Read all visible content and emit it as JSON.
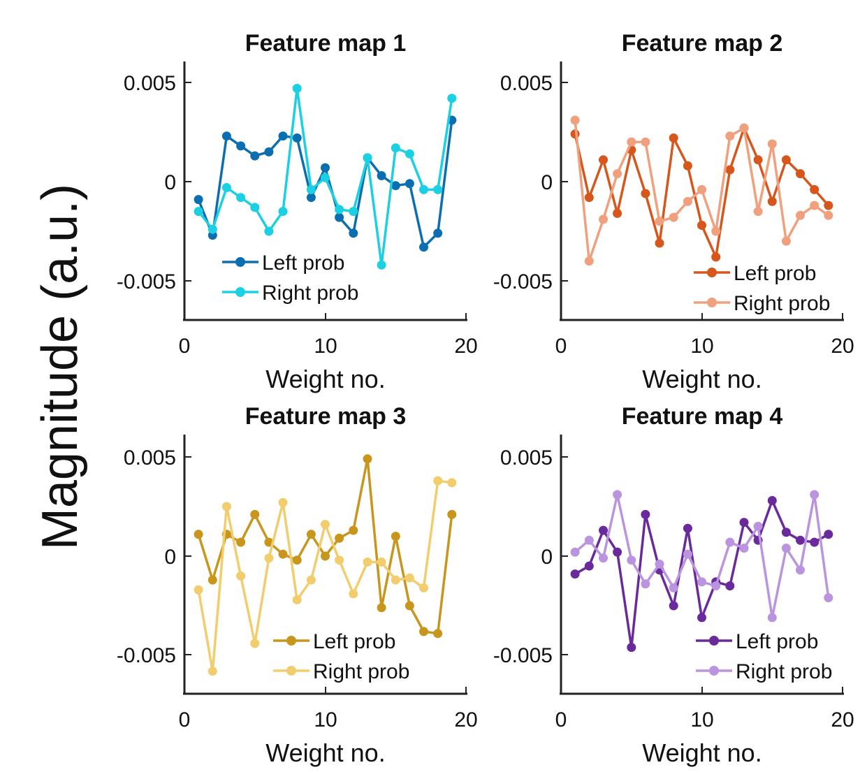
{
  "ylabel": "Magnitude (a.u.)",
  "colors": {
    "fm1": {
      "left": "#0b6eb0",
      "right": "#1ad0e2"
    },
    "fm2": {
      "left": "#d6561c",
      "right": "#f0a07c"
    },
    "fm3": {
      "left": "#c9961d",
      "right": "#f1cd6e"
    },
    "fm4": {
      "left": "#6b2a9c",
      "right": "#bb94e0"
    }
  },
  "chart_data": [
    {
      "type": "line",
      "title": "Feature map 1",
      "xlabel": "Weight no.",
      "xlim": [
        0,
        20
      ],
      "ylim": [
        -0.007,
        0.006
      ],
      "xticks": [
        "0",
        "10",
        "20"
      ],
      "yticks": [
        "0.005",
        "0",
        "-0.005"
      ],
      "legend_position": "bottom-left",
      "x": [
        1,
        2,
        3,
        4,
        5,
        6,
        7,
        8,
        9,
        10,
        11,
        12,
        13,
        14,
        15,
        16,
        17,
        18,
        19
      ],
      "series": [
        {
          "name": "Left prob",
          "values": [
            -0.0009,
            -0.0027,
            0.0023,
            0.0018,
            0.0013,
            0.0015,
            0.0023,
            0.0022,
            -0.0008,
            0.0007,
            -0.0018,
            -0.0026,
            0.0012,
            0.0003,
            -0.0002,
            -0.0001,
            -0.0033,
            -0.0026,
            0.0031
          ]
        },
        {
          "name": "Right prob",
          "values": [
            -0.0015,
            -0.0024,
            -0.0003,
            -0.0008,
            -0.0013,
            -0.0025,
            -0.0015,
            0.0047,
            -0.0004,
            0.0002,
            -0.0014,
            -0.0015,
            0.0012,
            -0.0042,
            0.0017,
            0.0014,
            -0.0004,
            -0.0004,
            0.0042
          ]
        }
      ]
    },
    {
      "type": "line",
      "title": "Feature map 2",
      "xlabel": "Weight no.",
      "xlim": [
        0,
        20
      ],
      "ylim": [
        -0.007,
        0.006
      ],
      "xticks": [
        "0",
        "10",
        "20"
      ],
      "yticks": [
        "0.005",
        "0",
        "-0.005"
      ],
      "legend_position": "bottom-right",
      "x": [
        1,
        2,
        3,
        4,
        5,
        6,
        7,
        8,
        9,
        10,
        11,
        12,
        13,
        14,
        15,
        16,
        17,
        18,
        19
      ],
      "series": [
        {
          "name": "Left prob",
          "values": [
            0.0024,
            -0.0008,
            0.0011,
            -0.0016,
            0.0016,
            -0.0006,
            -0.0031,
            0.0022,
            0.0008,
            -0.0022,
            -0.0038,
            0.0006,
            0.0027,
            0.0011,
            -0.001,
            0.0011,
            0.0004,
            -0.0004,
            -0.0012
          ]
        },
        {
          "name": "Right prob",
          "values": [
            0.0031,
            -0.004,
            -0.0019,
            0.0004,
            0.002,
            0.002,
            -0.002,
            -0.0018,
            -0.001,
            -0.0004,
            -0.0025,
            0.0023,
            0.0027,
            -0.0015,
            0.0019,
            -0.003,
            -0.0017,
            -0.0012,
            -0.0017
          ]
        }
      ]
    },
    {
      "type": "line",
      "title": "Feature map 3",
      "xlabel": "Weight no.",
      "xlim": [
        0,
        20
      ],
      "ylim": [
        -0.007,
        0.006
      ],
      "xticks": [
        "0",
        "10",
        "20"
      ],
      "yticks": [
        "0.005",
        "0",
        "-0.005"
      ],
      "legend_position": "bottom-right",
      "x": [
        1,
        2,
        3,
        4,
        5,
        6,
        7,
        8,
        9,
        10,
        11,
        12,
        13,
        14,
        15,
        16,
        17,
        18,
        19
      ],
      "series": [
        {
          "name": "Left prob",
          "values": [
            0.0011,
            -0.0012,
            0.0011,
            0.0007,
            0.0021,
            0.0007,
            0.0001,
            -0.0002,
            0.0011,
            0.0,
            0.0009,
            0.0013,
            0.0049,
            -0.0026,
            0.001,
            -0.0025,
            -0.0038,
            -0.0039,
            0.0021
          ]
        },
        {
          "name": "Right prob",
          "values": [
            -0.0017,
            -0.0058,
            0.0025,
            -0.001,
            -0.0044,
            -0.0001,
            0.0027,
            -0.0022,
            -0.0012,
            0.0016,
            -0.0002,
            -0.0019,
            -0.0003,
            -0.0003,
            -0.0012,
            -0.0011,
            -0.0016,
            0.0038,
            0.0037
          ]
        }
      ]
    },
    {
      "type": "line",
      "title": "Feature map 4",
      "xlabel": "Weight no.",
      "xlim": [
        0,
        20
      ],
      "ylim": [
        -0.007,
        0.006
      ],
      "xticks": [
        "0",
        "10",
        "20"
      ],
      "yticks": [
        "0.005",
        "0",
        "-0.005"
      ],
      "legend_position": "bottom-right",
      "x": [
        1,
        2,
        3,
        4,
        5,
        6,
        7,
        8,
        9,
        10,
        11,
        12,
        13,
        14,
        15,
        16,
        17,
        18,
        19
      ],
      "series": [
        {
          "name": "Left prob",
          "values": [
            -0.0009,
            -0.0005,
            0.0013,
            0.0002,
            -0.0046,
            0.0021,
            -0.0007,
            -0.0025,
            0.0014,
            -0.0031,
            -0.0013,
            -0.0015,
            0.0017,
            0.0008,
            0.0028,
            0.0012,
            0.0008,
            0.0007,
            0.0011
          ]
        },
        {
          "name": "Right prob",
          "values": [
            0.0002,
            0.0008,
            -0.0001,
            0.0031,
            -0.0002,
            -0.0014,
            -0.0004,
            -0.0016,
            0.0001,
            -0.0013,
            -0.0015,
            0.0007,
            0.0004,
            0.0015,
            -0.0031,
            0.0004,
            -0.0007,
            0.0031,
            -0.0021
          ]
        }
      ]
    }
  ]
}
